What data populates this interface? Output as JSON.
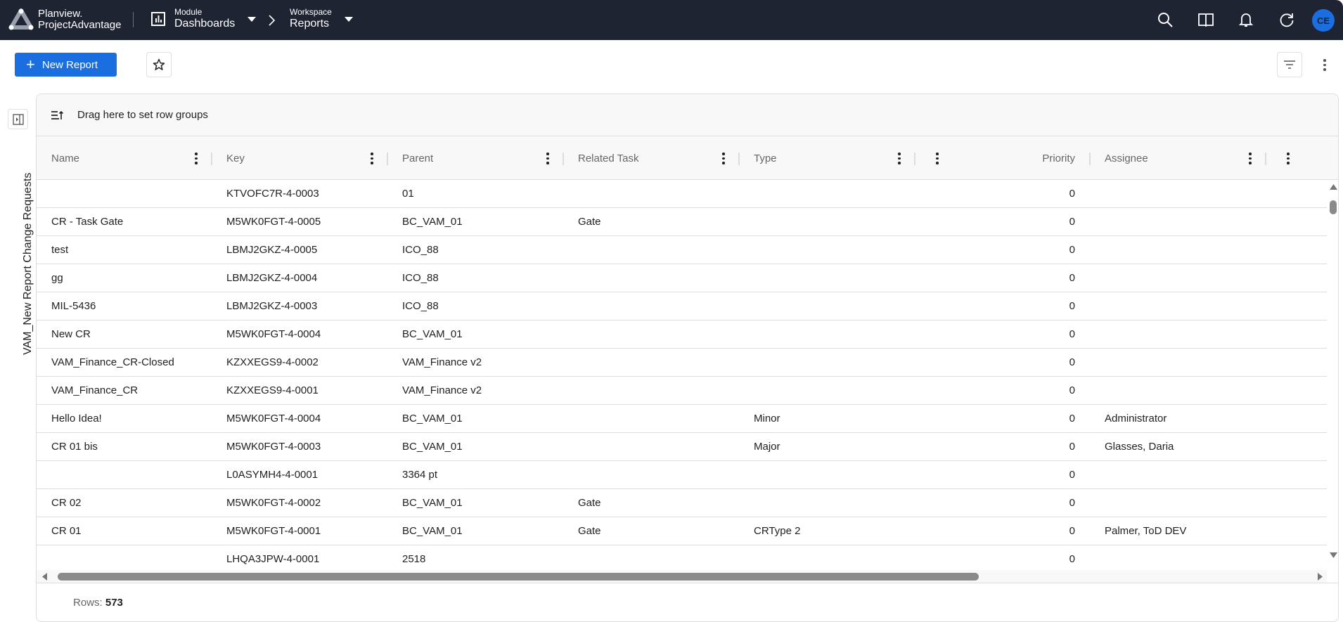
{
  "app": {
    "brand_line1": "Planview.",
    "brand_line2": "ProjectAdvantage",
    "module_label": "Module",
    "module_value": "Dashboards",
    "workspace_label": "Workspace",
    "workspace_value": "Reports",
    "avatar_initials": "CE"
  },
  "toolbar": {
    "new_report_label": "New Report"
  },
  "sidebar": {
    "title": "VAM_New Report Change Requests"
  },
  "grid": {
    "group_hint": "Drag here to set row groups",
    "columns": [
      "Name",
      "Key",
      "Parent",
      "Related Task",
      "Type",
      "Priority",
      "Assignee",
      ""
    ],
    "rows": [
      [
        "",
        "KTVOFC7R-4-0003",
        "01",
        "",
        "",
        "0",
        ""
      ],
      [
        "CR - Task Gate",
        "M5WK0FGT-4-0005",
        "BC_VAM_01",
        "Gate",
        "",
        "0",
        ""
      ],
      [
        "test",
        "LBMJ2GKZ-4-0005",
        "ICO_88",
        "",
        "",
        "0",
        ""
      ],
      [
        "gg",
        "LBMJ2GKZ-4-0004",
        "ICO_88",
        "",
        "",
        "0",
        ""
      ],
      [
        "MIL-5436",
        "LBMJ2GKZ-4-0003",
        "ICO_88",
        "",
        "",
        "0",
        ""
      ],
      [
        "New CR",
        "M5WK0FGT-4-0004",
        "BC_VAM_01",
        "",
        "",
        "0",
        ""
      ],
      [
        "VAM_Finance_CR-Closed",
        "KZXXEGS9-4-0002",
        "VAM_Finance v2",
        "",
        "",
        "0",
        ""
      ],
      [
        "VAM_Finance_CR",
        "KZXXEGS9-4-0001",
        "VAM_Finance v2",
        "",
        "",
        "0",
        ""
      ],
      [
        "Hello Idea!",
        "M5WK0FGT-4-0004",
        "BC_VAM_01",
        "",
        "Minor",
        "0",
        "Administrator"
      ],
      [
        "CR 01 bis",
        "M5WK0FGT-4-0003",
        "BC_VAM_01",
        "",
        "Major",
        "0",
        "Glasses, Daria"
      ],
      [
        "",
        "L0ASYMH4-4-0001",
        "3364 pt",
        "",
        "",
        "0",
        ""
      ],
      [
        "CR 02",
        "M5WK0FGT-4-0002",
        "BC_VAM_01",
        "Gate",
        "",
        "0",
        ""
      ],
      [
        "CR 01",
        "M5WK0FGT-4-0001",
        "BC_VAM_01",
        "Gate",
        "CRType 2",
        "0",
        "Palmer, ToD DEV"
      ],
      [
        "",
        "LHQA3JPW-4-0001",
        "2518",
        "",
        "",
        "0",
        ""
      ]
    ],
    "rows_label": "Rows:",
    "rows_count": "573"
  },
  "colors": {
    "topbar": "#1f2433",
    "accent": "#1a6ee0"
  }
}
